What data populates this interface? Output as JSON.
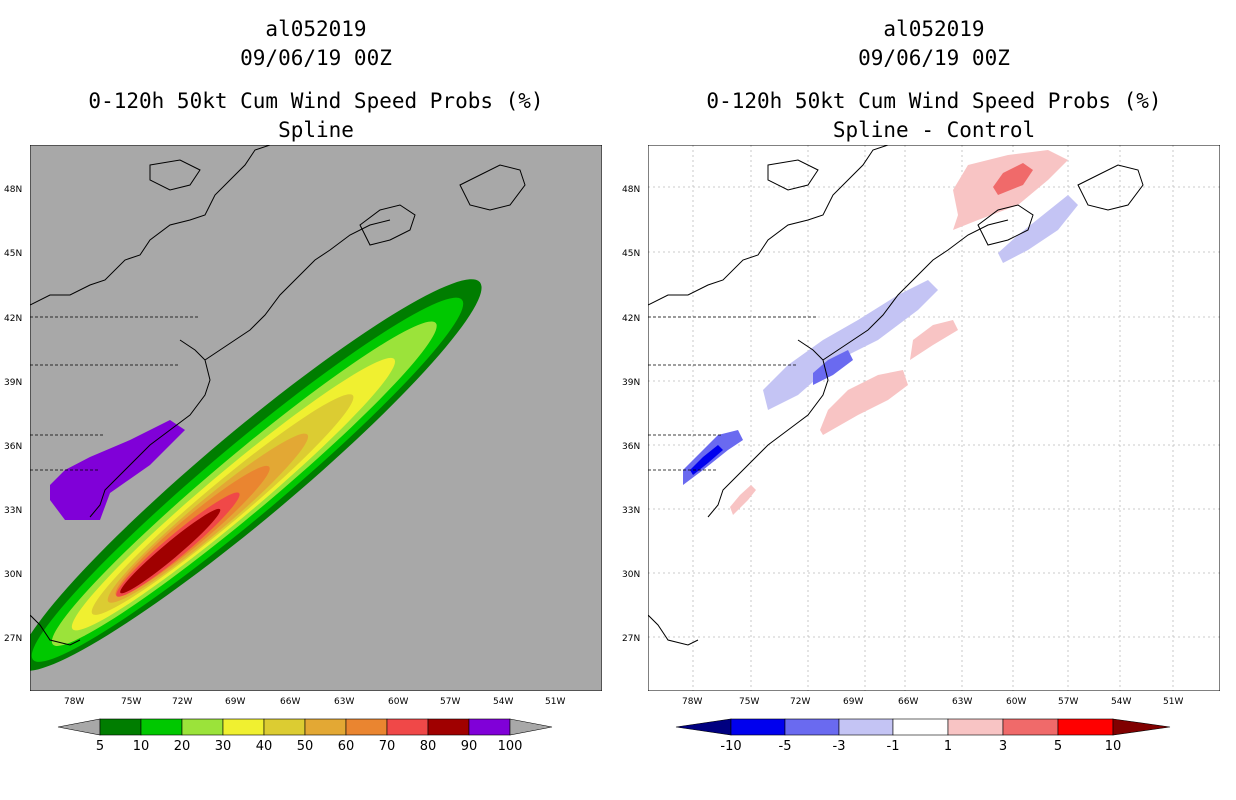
{
  "left_panel": {
    "storm_id": "al052019",
    "datetime": "09/06/19 00Z",
    "title": "0-120h 50kt Cum Wind Speed Probs (%)",
    "subtitle": "Spline",
    "background_color": "#a8a8a8",
    "lat_labels": [
      "48N",
      "45N",
      "42N",
      "39N",
      "36N",
      "33N",
      "30N",
      "27N"
    ],
    "lon_labels": [
      "78W",
      "75W",
      "72W",
      "69W",
      "66W",
      "63W",
      "60W",
      "57W",
      "54W",
      "51W"
    ],
    "colorbar": {
      "labels": [
        "5",
        "10",
        "20",
        "30",
        "40",
        "50",
        "60",
        "70",
        "80",
        "90",
        "100"
      ],
      "colors": [
        "#007d00",
        "#00c800",
        "#9be33a",
        "#f0f030",
        "#dccc32",
        "#e3a834",
        "#ea8530",
        "#f04848",
        "#a00000",
        "#8000d8"
      ],
      "end_color": "#a8a8a8"
    }
  },
  "right_panel": {
    "storm_id": "al052019",
    "datetime": "09/06/19 00Z",
    "title": "0-120h 50kt Cum Wind Speed Probs (%)",
    "subtitle": "Spline - Control",
    "background_color": "#ffffff",
    "lat_labels": [
      "48N",
      "45N",
      "42N",
      "39N",
      "36N",
      "33N",
      "30N",
      "27N"
    ],
    "lon_labels": [
      "78W",
      "75W",
      "72W",
      "69W",
      "66W",
      "63W",
      "60W",
      "57W",
      "54W",
      "51W"
    ],
    "colorbar": {
      "labels": [
        "-10",
        "-5",
        "-3",
        "-1",
        "1",
        "3",
        "5",
        "10"
      ],
      "colors": [
        "#0000aa",
        "#0000ee",
        "#6a6af0",
        "#c4c4f4",
        "#ffffff",
        "#f8c4c4",
        "#f06a6a",
        "#ff0000"
      ],
      "end_left": "#000080",
      "end_right": "#800000"
    }
  }
}
